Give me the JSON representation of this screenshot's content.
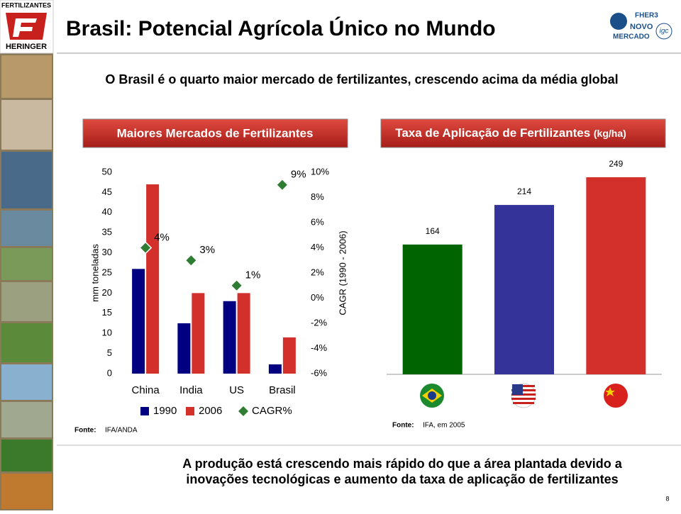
{
  "header": {
    "logo_top": "FERTILIZANTES",
    "logo_bottom": "HERINGER",
    "title": "Brasil: Potencial Agrícola Único no Mundo",
    "badge": [
      "FHER3",
      "NOVO",
      "MERCADO"
    ],
    "badge_small": "igc"
  },
  "headline": "O Brasil é o quarto maior mercado de fertilizantes, crescendo acima da média global",
  "chart_data": [
    {
      "type": "bar",
      "title": "Maiores Mercados de Fertilizantes",
      "categories": [
        "China",
        "India",
        "US",
        "Brasil"
      ],
      "series": [
        {
          "name": "1990",
          "color": "#000080",
          "values": [
            26,
            12.5,
            18,
            2.3
          ]
        },
        {
          "name": "2006",
          "color": "#d3302c",
          "values": [
            47,
            20,
            20,
            9
          ]
        },
        {
          "name": "CAGR%",
          "type": "scatter",
          "marker": "diamond",
          "color": "#2e7d32",
          "axis": "y2",
          "values": [
            4,
            3,
            1,
            9
          ],
          "value_labels": [
            "4%",
            "3%",
            "1%",
            "9%"
          ]
        }
      ],
      "ylabel": "mm toneladas",
      "ylim": [
        0,
        50
      ],
      "yticks": [
        0,
        5,
        10,
        15,
        20,
        25,
        30,
        35,
        40,
        45,
        50
      ],
      "y2label": "CAGR (1990 - 2006)",
      "y2lim": [
        -6,
        10
      ],
      "y2ticks": [
        {
          "value": -6,
          "label": "-6%"
        },
        {
          "value": -4,
          "label": "-4%"
        },
        {
          "value": -2,
          "label": "-2%"
        },
        {
          "value": 0,
          "label": "0%"
        },
        {
          "value": 2,
          "label": "2%"
        },
        {
          "value": 4,
          "label": "4%"
        },
        {
          "value": 6,
          "label": "6%"
        },
        {
          "value": 8,
          "label": "8%"
        },
        {
          "value": 10,
          "label": "10%"
        }
      ],
      "grid": false,
      "source_label": "Fonte:",
      "source": "IFA/ANDA"
    },
    {
      "type": "bar",
      "title": "Taxa de Aplicação de Fertilizantes",
      "unit": "(kg/ha)",
      "categories": [
        null,
        null,
        null
      ],
      "values": [
        164,
        214,
        249
      ],
      "colors": [
        "#006400",
        "#333399",
        "#d3302c"
      ],
      "grid": false,
      "source_label": "Fonte:",
      "source": "IFA, em 2005"
    }
  ],
  "footer": {
    "conclusion": [
      "A produção está crescendo mais rápido do que a área plantada devido a",
      "inovações tecnológicas e aumento da taxa de aplicação de fertilizantes"
    ],
    "page": 8
  }
}
